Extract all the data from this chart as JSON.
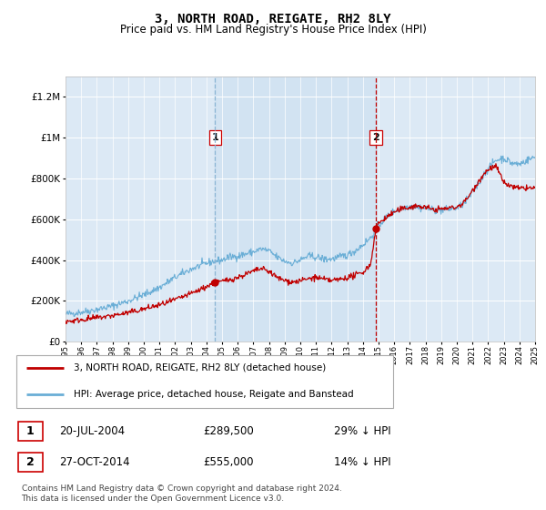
{
  "title": "3, NORTH ROAD, REIGATE, RH2 8LY",
  "subtitle": "Price paid vs. HM Land Registry's House Price Index (HPI)",
  "plot_bg_color": "#dce9f5",
  "hpi_color": "#6aaed6",
  "price_color": "#c00000",
  "vline1_color": "#8ab4d4",
  "vline2_color": "#c00000",
  "shade_color": "#ccdff0",
  "legend_entry1": "3, NORTH ROAD, REIGATE, RH2 8LY (detached house)",
  "legend_entry2": "HPI: Average price, detached house, Reigate and Banstead",
  "sale1_year": 2004.55,
  "sale1_price": 289500,
  "sale2_year": 2014.82,
  "sale2_price": 555000,
  "footer": "Contains HM Land Registry data © Crown copyright and database right 2024.\nThis data is licensed under the Open Government Licence v3.0.",
  "ylim": [
    0,
    1300000
  ],
  "xmin": 1995,
  "xmax": 2025,
  "hpi_anchors": [
    [
      1995.0,
      135000
    ],
    [
      1996.0,
      145000
    ],
    [
      1997.0,
      158000
    ],
    [
      1998.0,
      175000
    ],
    [
      1999.0,
      200000
    ],
    [
      2000.0,
      230000
    ],
    [
      2001.0,
      265000
    ],
    [
      2002.0,
      315000
    ],
    [
      2003.0,
      355000
    ],
    [
      2004.0,
      385000
    ],
    [
      2004.55,
      395000
    ],
    [
      2005.0,
      400000
    ],
    [
      2005.5,
      415000
    ],
    [
      2006.0,
      420000
    ],
    [
      2006.5,
      430000
    ],
    [
      2007.0,
      440000
    ],
    [
      2007.5,
      455000
    ],
    [
      2008.0,
      445000
    ],
    [
      2008.5,
      415000
    ],
    [
      2009.0,
      395000
    ],
    [
      2009.5,
      385000
    ],
    [
      2010.0,
      400000
    ],
    [
      2010.5,
      420000
    ],
    [
      2011.0,
      415000
    ],
    [
      2011.5,
      405000
    ],
    [
      2012.0,
      405000
    ],
    [
      2012.5,
      415000
    ],
    [
      2013.0,
      425000
    ],
    [
      2013.5,
      445000
    ],
    [
      2014.0,
      475000
    ],
    [
      2014.5,
      510000
    ],
    [
      2014.82,
      545000
    ],
    [
      2015.0,
      570000
    ],
    [
      2015.5,
      610000
    ],
    [
      2016.0,
      640000
    ],
    [
      2016.5,
      655000
    ],
    [
      2017.0,
      665000
    ],
    [
      2017.5,
      660000
    ],
    [
      2018.0,
      655000
    ],
    [
      2018.5,
      645000
    ],
    [
      2019.0,
      645000
    ],
    [
      2019.5,
      650000
    ],
    [
      2020.0,
      655000
    ],
    [
      2020.5,
      680000
    ],
    [
      2021.0,
      730000
    ],
    [
      2021.5,
      790000
    ],
    [
      2022.0,
      850000
    ],
    [
      2022.5,
      890000
    ],
    [
      2023.0,
      900000
    ],
    [
      2023.5,
      875000
    ],
    [
      2024.0,
      870000
    ],
    [
      2024.5,
      890000
    ],
    [
      2025.0,
      905000
    ]
  ],
  "price_anchors": [
    [
      1995.0,
      100000
    ],
    [
      1995.5,
      102000
    ],
    [
      1996.0,
      108000
    ],
    [
      1996.5,
      112000
    ],
    [
      1997.0,
      118000
    ],
    [
      1997.5,
      122000
    ],
    [
      1998.0,
      128000
    ],
    [
      1998.5,
      135000
    ],
    [
      1999.0,
      142000
    ],
    [
      1999.5,
      150000
    ],
    [
      2000.0,
      160000
    ],
    [
      2000.5,
      170000
    ],
    [
      2001.0,
      180000
    ],
    [
      2001.5,
      192000
    ],
    [
      2002.0,
      205000
    ],
    [
      2002.5,
      220000
    ],
    [
      2003.0,
      235000
    ],
    [
      2003.5,
      252000
    ],
    [
      2004.0,
      270000
    ],
    [
      2004.55,
      289500
    ],
    [
      2005.0,
      295000
    ],
    [
      2005.5,
      305000
    ],
    [
      2006.0,
      315000
    ],
    [
      2006.5,
      330000
    ],
    [
      2007.0,
      345000
    ],
    [
      2007.5,
      358000
    ],
    [
      2008.0,
      345000
    ],
    [
      2008.5,
      315000
    ],
    [
      2009.0,
      300000
    ],
    [
      2009.5,
      292000
    ],
    [
      2010.0,
      298000
    ],
    [
      2010.5,
      308000
    ],
    [
      2011.0,
      315000
    ],
    [
      2011.5,
      305000
    ],
    [
      2012.0,
      300000
    ],
    [
      2012.5,
      305000
    ],
    [
      2013.0,
      315000
    ],
    [
      2013.5,
      325000
    ],
    [
      2014.0,
      340000
    ],
    [
      2014.5,
      380000
    ],
    [
      2014.82,
      555000
    ],
    [
      2015.0,
      580000
    ],
    [
      2015.5,
      610000
    ],
    [
      2016.0,
      635000
    ],
    [
      2016.5,
      650000
    ],
    [
      2017.0,
      660000
    ],
    [
      2017.5,
      665000
    ],
    [
      2018.0,
      658000
    ],
    [
      2018.5,
      648000
    ],
    [
      2019.0,
      650000
    ],
    [
      2019.5,
      655000
    ],
    [
      2020.0,
      660000
    ],
    [
      2020.5,
      685000
    ],
    [
      2021.0,
      740000
    ],
    [
      2021.5,
      800000
    ],
    [
      2022.0,
      845000
    ],
    [
      2022.5,
      860000
    ],
    [
      2023.0,
      780000
    ],
    [
      2023.5,
      760000
    ],
    [
      2024.0,
      750000
    ],
    [
      2024.5,
      755000
    ],
    [
      2025.0,
      750000
    ]
  ]
}
